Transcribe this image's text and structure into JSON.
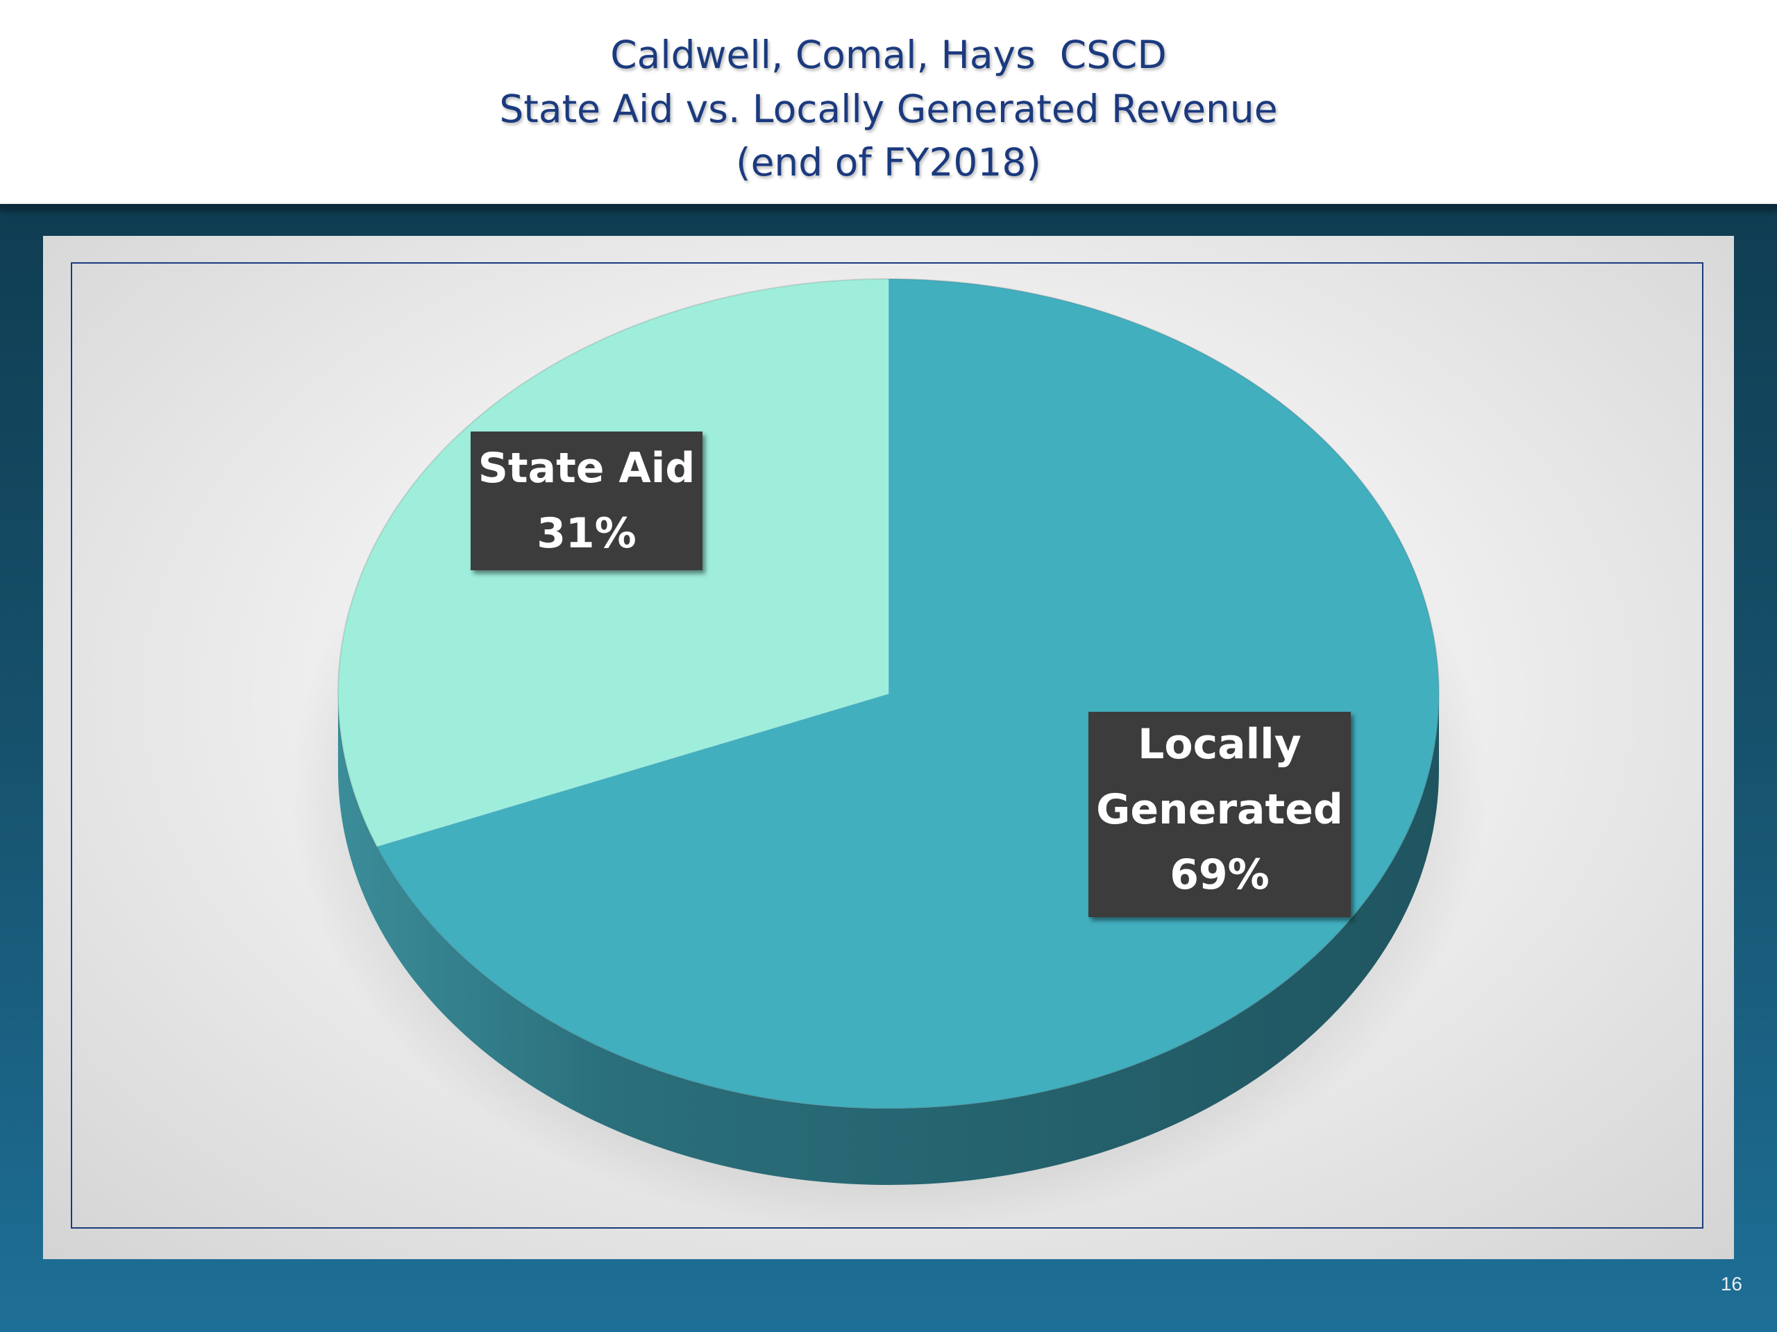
{
  "slide": {
    "title_lines": [
      "Caldwell, Comal, Hays  CSCD",
      "State Aid vs. Locally Generated Revenue",
      "(end of FY2018)"
    ],
    "page_number": "16"
  },
  "colors": {
    "title": "#1b3a7e",
    "state_aid": "#9eeedb",
    "locally_generated": "#42afbf",
    "side_dark": "#1f5560",
    "label_box": "#3c3c3c",
    "band": "#16506a"
  },
  "chart_data": {
    "type": "pie",
    "style": "3d",
    "title": "Caldwell, Comal, Hays  CSCD\nState Aid vs. Locally Generated Revenue\n(end of FY2018)",
    "categories": [
      "State Aid",
      "Locally Generated"
    ],
    "values": [
      31,
      69
    ],
    "value_unit": "%",
    "labels": [
      {
        "category": "State Aid",
        "text": "State Aid\n31%"
      },
      {
        "category": "Locally Generated",
        "text": "Locally\nGenerated\n69%"
      }
    ],
    "legend": "none"
  }
}
